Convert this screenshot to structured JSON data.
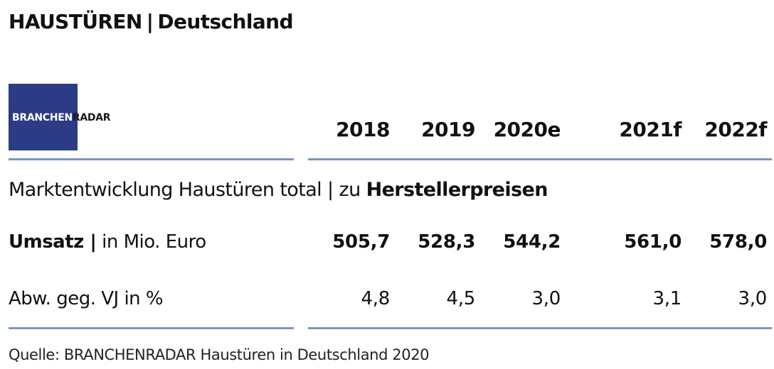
{
  "title": {
    "main": "HAUSTÜREN",
    "sep": "|",
    "region": "Deutschland"
  },
  "logo": {
    "part1": "BRANCHEN",
    "part2": "RADAR"
  },
  "section": {
    "normal": "Marktentwicklung Haustüren total | zu ",
    "bold": "Herstellerpreisen"
  },
  "rows": {
    "umsatz": {
      "label_bold": "Umsatz |",
      "label_normal": " in Mio. Euro"
    },
    "abw": {
      "label": "Abw. geg. VJ in %"
    }
  },
  "source": "Quelle: BRANCHENRADAR Haustüren in Deutschland 2020",
  "colors": {
    "logo_bg": "#2b3b86",
    "rule": "#7b97bf"
  },
  "chart_data": {
    "type": "table",
    "columns": [
      "2018",
      "2019",
      "2020e",
      "2021f",
      "2022f"
    ],
    "rows": [
      {
        "name": "Umsatz | in Mio. Euro",
        "values": [
          "505,7",
          "528,3",
          "544,2",
          "561,0",
          "578,0"
        ]
      },
      {
        "name": "Abw. geg. VJ in %",
        "values": [
          "4,8",
          "4,5",
          "3,0",
          "3,1",
          "3,0"
        ]
      }
    ]
  }
}
